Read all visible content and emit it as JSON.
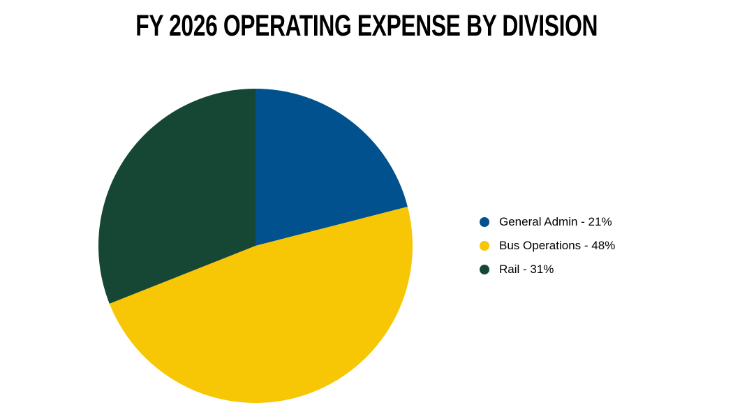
{
  "page": {
    "background_color": "#ffffff",
    "title_color": "#000000",
    "legend_text_color": "#000000"
  },
  "chart_data": {
    "type": "pie",
    "title": "FY 2026 OPERATING EXPENSE BY DIVISION",
    "categories": [
      "General Admin",
      "Bus Operations",
      "Rail"
    ],
    "values": [
      21,
      48,
      31
    ],
    "values_unit": "%",
    "slices": [
      {
        "label": "General Admin",
        "value": 21,
        "color": "#00518D",
        "legend_label": "General Admin - 21%"
      },
      {
        "label": "Bus Operations",
        "value": 48,
        "color": "#F7C604",
        "legend_label": "Bus Operations - 48%"
      },
      {
        "label": "Rail",
        "value": 31,
        "color": "#154734",
        "legend_label": "Rail - 31%"
      }
    ],
    "start_angle_deg": 0,
    "direction": "clockwise",
    "legend_position": "right",
    "data_labels": "off",
    "grid": "off"
  }
}
